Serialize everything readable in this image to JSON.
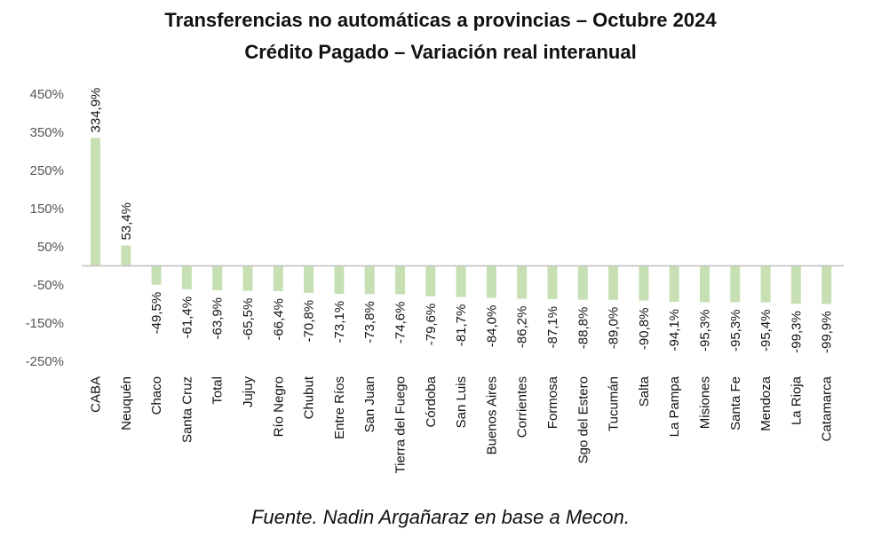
{
  "title": "Transferencias no automáticas a provincias – Octubre 2024",
  "subtitle": "Crédito Pagado – Variación real interanual",
  "source": "Fuente. Nadin Argañaraz en base a Mecon.",
  "colors": {
    "bar": "#c6e0b4",
    "axis": "#bfbfbf"
  },
  "chart_data": {
    "type": "bar",
    "title": "Transferencias no automáticas a provincias – Octubre 2024",
    "subtitle": "Crédito Pagado – Variación real interanual",
    "xlabel": "",
    "ylabel": "",
    "ylim": [
      -250,
      450
    ],
    "yticks": [
      450,
      350,
      250,
      150,
      50,
      -50,
      -150,
      -250
    ],
    "ytick_labels": [
      "450%",
      "350%",
      "250%",
      "150%",
      "50%",
      "-50%",
      "-150%",
      "-250%"
    ],
    "grid": false,
    "categories": [
      "CABA",
      "Neuquén",
      "Chaco",
      "Santa Cruz",
      "Total",
      "Jujuy",
      "Río Negro",
      "Chubut",
      "Entre Ríos",
      "San Juan",
      "Tierra del Fuego",
      "Córdoba",
      "San Luis",
      "Buenos Aires",
      "Corrientes",
      "Formosa",
      "Sgo del Estero",
      "Tucumán",
      "Salta",
      "La Pampa",
      "Misiones",
      "Santa Fe",
      "Mendoza",
      "La Rioja",
      "Catamarca"
    ],
    "values": [
      334.9,
      53.4,
      -49.5,
      -61.4,
      -63.9,
      -65.5,
      -66.4,
      -70.8,
      -73.1,
      -73.8,
      -74.6,
      -79.6,
      -81.7,
      -84.0,
      -86.2,
      -87.1,
      -88.8,
      -89.0,
      -90.8,
      -94.1,
      -95.3,
      -95.3,
      -95.4,
      -99.3,
      -99.9
    ],
    "data_labels": [
      "334,9%",
      "53,4%",
      "-49,5%",
      "-61,4%",
      "-63,9%",
      "-65,5%",
      "-66,4%",
      "-70,8%",
      "-73,1%",
      "-73,8%",
      "-74,6%",
      "-79,6%",
      "-81,7%",
      "-84,0%",
      "-86,2%",
      "-87,1%",
      "-88,8%",
      "-89,0%",
      "-90,8%",
      "-94,1%",
      "-95,3%",
      "-95,3%",
      "-95,4%",
      "-99,3%",
      "-99,9%"
    ]
  }
}
